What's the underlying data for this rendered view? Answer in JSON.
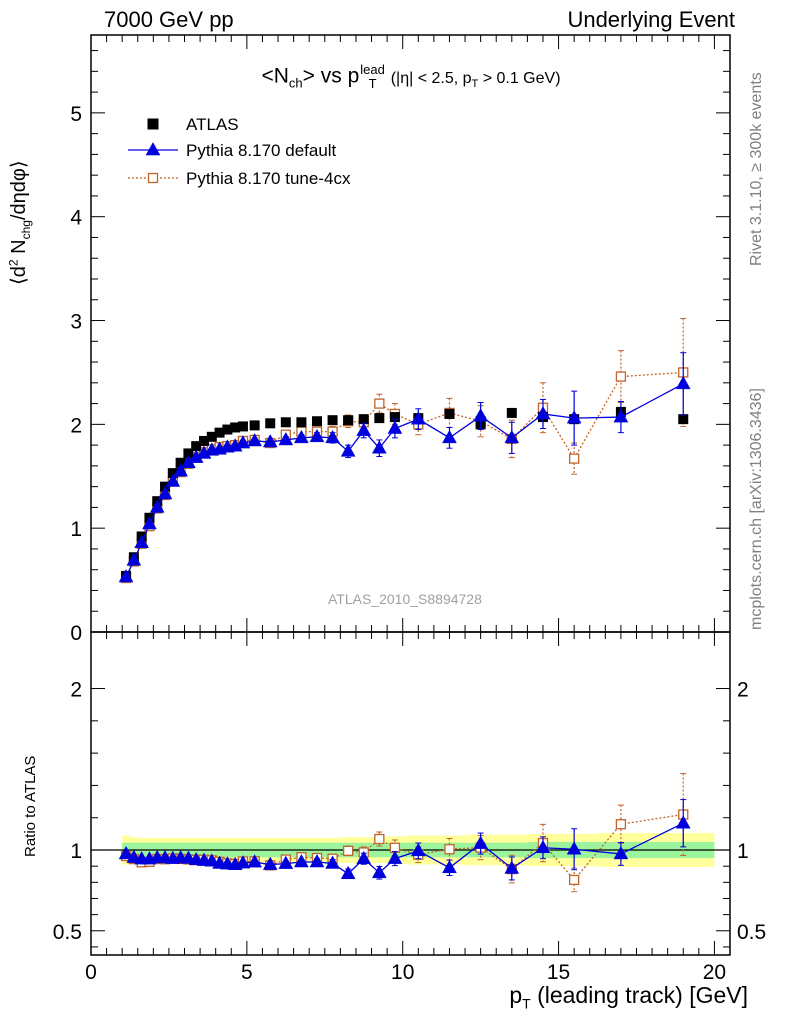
{
  "header": {
    "left": "7000 GeV pp",
    "right": "Underlying Event"
  },
  "side_text": {
    "rivet": "Rivet 3.1.10, ≥ 300k events",
    "mcplots": "mcplots.cern.ch [arXiv:1306.3436]"
  },
  "watermark": "ATLAS_2010_S8894728",
  "colors": {
    "atlas": "#000000",
    "default": "#0000dd",
    "tune4cx": "#c0642a",
    "band_inner": "#9cf59c",
    "band_outer": "#ffff9c"
  },
  "chart_data": [
    {
      "type": "scatter",
      "title": "<N_ch> vs p_T^lead (|η| < 2.5, p_T > 0.1 GeV)",
      "title_parts": {
        "pre": "<N",
        "sub1": "ch",
        "mid": "> vs p",
        "sub2": "T",
        "sup2": "lead",
        "cut_a": "(|η| < 2.5, p",
        "cut_sub": "T",
        "cut_b": " > 0.1 GeV)"
      },
      "ylabel": "⟨d² N_chg/dηdφ⟩",
      "ylabel_parts": {
        "a": "⟨d",
        "sup": "2",
        "b": " N",
        "sub": "chg",
        "c": "/dηdφ⟩"
      },
      "xlim": [
        0,
        20.5
      ],
      "ylim": [
        0,
        5.75
      ],
      "yticks": [
        0,
        1,
        2,
        3,
        4,
        5
      ],
      "legend_position": "top-left",
      "x": [
        1.125,
        1.375,
        1.625,
        1.875,
        2.125,
        2.375,
        2.625,
        2.875,
        3.125,
        3.375,
        3.625,
        3.875,
        4.125,
        4.375,
        4.625,
        4.875,
        5.25,
        5.75,
        6.25,
        6.75,
        7.25,
        7.75,
        8.25,
        8.75,
        9.25,
        9.75,
        10.5,
        11.5,
        12.5,
        13.5,
        14.5,
        15.5,
        17.0,
        19.0
      ],
      "series": [
        {
          "name": "ATLAS",
          "marker": "filled-square",
          "values": [
            0.54,
            0.72,
            0.92,
            1.1,
            1.26,
            1.4,
            1.53,
            1.63,
            1.72,
            1.79,
            1.84,
            1.88,
            1.92,
            1.95,
            1.97,
            1.98,
            1.99,
            2.01,
            2.02,
            2.02,
            2.03,
            2.04,
            2.04,
            2.05,
            2.06,
            2.07,
            2.06,
            2.1,
            2.0,
            2.11,
            2.07,
            2.05,
            2.12,
            2.05
          ],
          "ratio": [
            1,
            1,
            1,
            1,
            1,
            1,
            1,
            1,
            1,
            1,
            1,
            1,
            1,
            1,
            1,
            1,
            1,
            1,
            1,
            1,
            1,
            1,
            1,
            1,
            1,
            1,
            1,
            1,
            1,
            1,
            1,
            1,
            1,
            1
          ],
          "band_inner": [
            0.045,
            0.045,
            0.045,
            0.045,
            0.045,
            0.045,
            0.045,
            0.045,
            0.045,
            0.045,
            0.045,
            0.045,
            0.045,
            0.045,
            0.045,
            0.045,
            0.045,
            0.045,
            0.045,
            0.045,
            0.045,
            0.045,
            0.045,
            0.045,
            0.045,
            0.045,
            0.045,
            0.045,
            0.045,
            0.045,
            0.05,
            0.05,
            0.05,
            0.05
          ],
          "band_outer": [
            0.09,
            0.08,
            0.075,
            0.075,
            0.075,
            0.075,
            0.075,
            0.075,
            0.075,
            0.075,
            0.075,
            0.075,
            0.075,
            0.075,
            0.075,
            0.075,
            0.075,
            0.075,
            0.075,
            0.075,
            0.075,
            0.075,
            0.08,
            0.08,
            0.08,
            0.085,
            0.09,
            0.09,
            0.095,
            0.095,
            0.1,
            0.1,
            0.105,
            0.105
          ]
        },
        {
          "name": "Pythia 8.170 default",
          "marker": "filled-triangle",
          "values": [
            0.53,
            0.69,
            0.86,
            1.04,
            1.2,
            1.33,
            1.45,
            1.55,
            1.63,
            1.68,
            1.72,
            1.75,
            1.76,
            1.78,
            1.79,
            1.82,
            1.84,
            1.83,
            1.85,
            1.87,
            1.88,
            1.87,
            1.74,
            1.94,
            1.77,
            1.96,
            2.05,
            1.87,
            2.08,
            1.87,
            2.1,
            2.06,
            2.07,
            2.39
          ],
          "errors": [
            0.01,
            0.01,
            0.01,
            0.01,
            0.01,
            0.01,
            0.01,
            0.01,
            0.01,
            0.01,
            0.01,
            0.01,
            0.01,
            0.01,
            0.02,
            0.02,
            0.02,
            0.02,
            0.03,
            0.03,
            0.04,
            0.05,
            0.06,
            0.07,
            0.08,
            0.09,
            0.1,
            0.1,
            0.13,
            0.15,
            0.14,
            0.26,
            0.15,
            0.3
          ],
          "ratio": [
            0.976,
            0.953,
            0.944,
            0.944,
            0.952,
            0.951,
            0.947,
            0.951,
            0.948,
            0.939,
            0.935,
            0.931,
            0.917,
            0.913,
            0.909,
            0.919,
            0.925,
            0.91,
            0.916,
            0.926,
            0.926,
            0.917,
            0.853,
            0.946,
            0.859,
            0.947,
            0.995,
            0.89,
            1.04,
            0.886,
            1.014,
            1.005,
            0.976,
            1.166
          ]
        },
        {
          "name": "Pythia 8.170 tune-4cx",
          "marker": "open-square",
          "values": [
            0.52,
            0.68,
            0.85,
            1.02,
            1.19,
            1.32,
            1.45,
            1.54,
            1.62,
            1.68,
            1.73,
            1.76,
            1.78,
            1.79,
            1.8,
            1.84,
            1.85,
            1.82,
            1.9,
            1.93,
            1.93,
            1.93,
            2.03,
            2.02,
            2.2,
            2.1,
            2.0,
            2.11,
            2.03,
            1.86,
            2.16,
            1.67,
            2.46,
            2.5
          ],
          "errors": [
            0.01,
            0.01,
            0.01,
            0.01,
            0.01,
            0.01,
            0.01,
            0.01,
            0.01,
            0.01,
            0.01,
            0.01,
            0.01,
            0.01,
            0.02,
            0.02,
            0.02,
            0.02,
            0.03,
            0.03,
            0.04,
            0.05,
            0.06,
            0.07,
            0.09,
            0.1,
            0.1,
            0.14,
            0.15,
            0.18,
            0.24,
            0.15,
            0.25,
            0.52
          ],
          "ratio": [
            0.963,
            0.944,
            0.924,
            0.927,
            0.944,
            0.943,
            0.948,
            0.945,
            0.942,
            0.939,
            0.94,
            0.936,
            0.927,
            0.918,
            0.914,
            0.929,
            0.93,
            0.905,
            0.941,
            0.955,
            0.951,
            0.946,
            0.995,
            0.985,
            1.068,
            1.014,
            0.971,
            1.005,
            1.015,
            0.882,
            1.043,
            0.815,
            1.16,
            1.22
          ]
        }
      ]
    },
    {
      "type": "scatter",
      "ylabel": "Ratio to ATLAS",
      "xlabel": "p_T (leading track) [GeV]",
      "xlabel_parts": {
        "a": "p",
        "sub": "T",
        "b": " (leading track) [GeV]"
      },
      "xlim": [
        0,
        20.5
      ],
      "ylim": [
        0.35,
        2.35
      ],
      "yticks": [
        0.5,
        1,
        2
      ],
      "ytick_labels": [
        "0.5",
        "1",
        "2"
      ],
      "xticks": [
        0,
        5,
        10,
        15,
        20
      ],
      "xtick_labels": [
        "0",
        "5",
        "10",
        "15",
        "20"
      ]
    }
  ]
}
